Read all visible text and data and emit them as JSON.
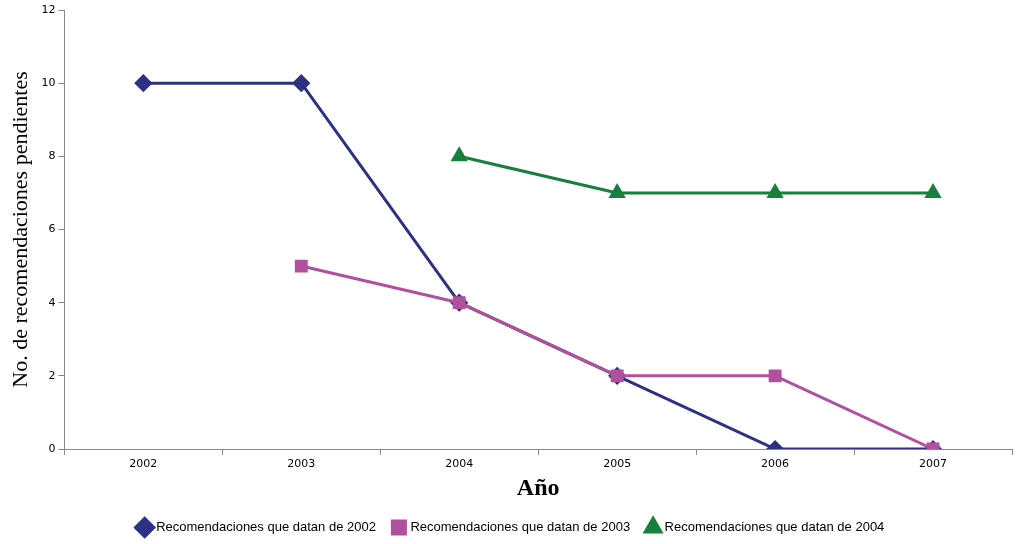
{
  "chart_data": {
    "type": "line",
    "xlabel": "Año",
    "ylabel": "No. de recomendaciones pendientes",
    "categories": [
      "2002",
      "2003",
      "2004",
      "2005",
      "2006",
      "2007"
    ],
    "series": [
      {
        "name": "Recomendaciones que datan de 2002",
        "color": "#2e3183",
        "marker": "diamond",
        "values": [
          10,
          10,
          4,
          2,
          0,
          0
        ]
      },
      {
        "name": "Recomendaciones que datan de 2003",
        "color": "#b0509e",
        "marker": "square",
        "values": [
          null,
          5,
          4,
          2,
          2,
          0
        ]
      },
      {
        "name": "Recomendaciones que datan de 2004",
        "color": "#16803c",
        "marker": "triangle",
        "values": [
          null,
          null,
          8,
          7,
          7,
          7
        ]
      }
    ],
    "ylim": [
      0,
      12
    ],
    "yticks": [
      0,
      2,
      4,
      6,
      8,
      10,
      12
    ],
    "grid": false,
    "legend": "bottom",
    "line_style": "solid"
  }
}
